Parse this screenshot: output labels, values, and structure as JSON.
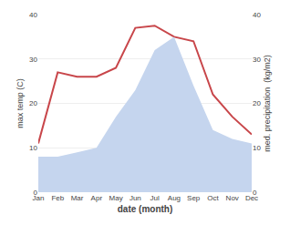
{
  "chart_data": {
    "type": "line",
    "xlabel": "date (month)",
    "ylabel": "max temp (C)",
    "y2label": "med. precipitation  (kg/m2)",
    "categories": [
      "Jan",
      "Feb",
      "Mar",
      "Apr",
      "May",
      "Jun",
      "Jul",
      "Aug",
      "Sep",
      "Oct",
      "Nov",
      "Dec"
    ],
    "series": [
      {
        "type": "area",
        "color": "#c5d5ee",
        "axis": "y2",
        "values": [
          8,
          8,
          9,
          10,
          17,
          23,
          32,
          35,
          24,
          14,
          12,
          11
        ]
      },
      {
        "type": "line",
        "color": "#c8464a",
        "values": [
          11,
          27,
          26,
          26,
          28,
          37,
          37.5,
          35,
          34,
          22,
          17,
          13
        ]
      }
    ],
    "ylim": [
      0,
      40
    ],
    "yticks": [
      0,
      10,
      20,
      30,
      40
    ],
    "y2lim": [
      0,
      40
    ],
    "y2ticks": [
      0,
      10,
      20,
      30,
      40
    ],
    "grid": "y"
  }
}
